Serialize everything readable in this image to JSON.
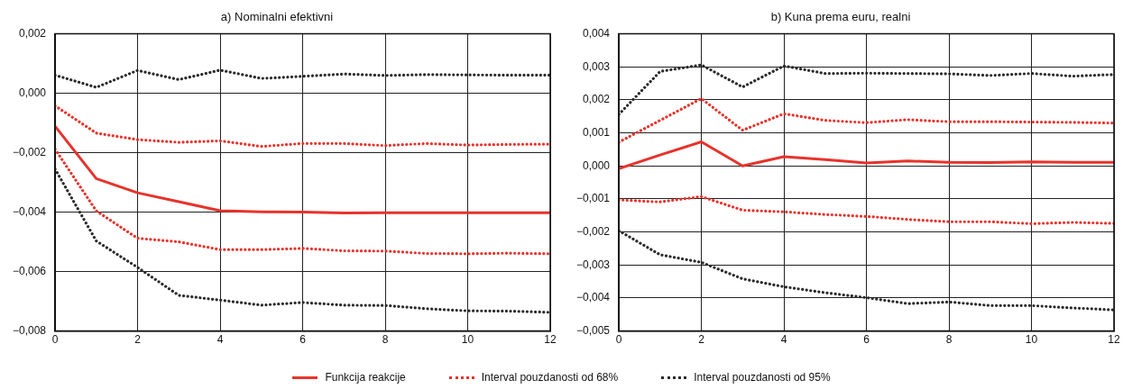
{
  "chart_data": [
    {
      "type": "line",
      "title": "a) Nominalni efektivni",
      "x": [
        0,
        1,
        2,
        3,
        4,
        5,
        6,
        7,
        8,
        9,
        10,
        11,
        12
      ],
      "xlim": [
        0,
        12
      ],
      "xticks": [
        0,
        2,
        4,
        6,
        8,
        10,
        12
      ],
      "ylim": [
        -0.008,
        0.002
      ],
      "yticks": [
        {
          "value": -0.008,
          "label": "−0,008"
        },
        {
          "value": -0.006,
          "label": "−0,006"
        },
        {
          "value": -0.004,
          "label": "−0,004"
        },
        {
          "value": -0.002,
          "label": "−0,002"
        },
        {
          "value": 0,
          "label": "0,000"
        },
        {
          "value": 0.002,
          "label": "0,002"
        }
      ],
      "grid": true,
      "legend": "bottom",
      "marker": "none",
      "series": [
        {
          "name": "Funkcija reakcije",
          "color": "#e8322b",
          "line_style": "solid",
          "values": [
            -0.00111,
            -0.00287,
            -0.00335,
            -0.00365,
            -0.00395,
            -0.00399,
            -0.004,
            -0.00403,
            -0.00402,
            -0.00402,
            -0.00402,
            -0.00402,
            -0.00402
          ]
        },
        {
          "name": "Interval pouzdanosti od 68%",
          "color": "#e8322b",
          "line_style": "dotted",
          "values": [
            -0.00042,
            -0.00134,
            -0.00156,
            -0.00165,
            -0.0016,
            -0.00179,
            -0.00169,
            -0.00169,
            -0.00176,
            -0.00169,
            -0.00174,
            -0.00172,
            -0.00171
          ]
        },
        {
          "color": "#e8322b",
          "line_style": "dotted",
          "values": [
            -0.00188,
            -0.00396,
            -0.00488,
            -0.005,
            -0.00526,
            -0.00526,
            -0.00522,
            -0.0053,
            -0.00531,
            -0.00539,
            -0.0054,
            -0.00538,
            -0.0054
          ]
        },
        {
          "name": "Interval pouzdanosti od 95%",
          "color": "#2b2b2b",
          "line_style": "dotted",
          "values": [
            0.00061,
            0.0002,
            0.00077,
            0.00046,
            0.00078,
            0.0005,
            0.00057,
            0.00065,
            0.0006,
            0.00063,
            0.00062,
            0.00061,
            0.00061
          ]
        },
        {
          "color": "#2b2b2b",
          "line_style": "dotted",
          "values": [
            -0.00255,
            -0.00497,
            -0.00586,
            -0.0068,
            -0.00696,
            -0.00713,
            -0.00704,
            -0.00713,
            -0.00714,
            -0.00725,
            -0.00732,
            -0.00733,
            -0.00737
          ]
        }
      ]
    },
    {
      "type": "line",
      "title": "b) Kuna prema euru, realni",
      "x": [
        0,
        1,
        2,
        3,
        4,
        5,
        6,
        7,
        8,
        9,
        10,
        11,
        12
      ],
      "xlim": [
        0,
        12
      ],
      "xticks": [
        0,
        2,
        4,
        6,
        8,
        10,
        12
      ],
      "ylim": [
        -0.005,
        0.004
      ],
      "yticks": [
        {
          "value": -0.005,
          "label": "−0,005"
        },
        {
          "value": -0.004,
          "label": "−0,004"
        },
        {
          "value": -0.003,
          "label": "−0,003"
        },
        {
          "value": -0.002,
          "label": "−0,002"
        },
        {
          "value": -0.001,
          "label": "−0,001"
        },
        {
          "value": 0,
          "label": "0,000"
        },
        {
          "value": 0.001,
          "label": "0,001"
        },
        {
          "value": 0.002,
          "label": "0,002"
        },
        {
          "value": 0.003,
          "label": "0,003"
        },
        {
          "value": 0.004,
          "label": "0,004"
        }
      ],
      "grid": true,
      "marker": "none",
      "series": [
        {
          "color": "#e8322b",
          "line_style": "solid",
          "values": [
            -8e-05,
            0.00033,
            0.00073,
            0,
            0.00028,
            0.00019,
            9e-05,
            0.00015,
            0.00011,
            0.0001,
            0.00012,
            0.00011,
            0.00011
          ]
        },
        {
          "color": "#e8322b",
          "line_style": "dotted",
          "values": [
            0.00072,
            0.00138,
            0.00204,
            0.00108,
            0.00158,
            0.00138,
            0.00131,
            0.0014,
            0.00134,
            0.00134,
            0.00133,
            0.00132,
            0.0013
          ]
        },
        {
          "color": "#e8322b",
          "line_style": "dotted",
          "values": [
            -0.00103,
            -0.00109,
            -0.00093,
            -0.00134,
            -0.00139,
            -0.00147,
            -0.00153,
            -0.00162,
            -0.00169,
            -0.00169,
            -0.00175,
            -0.00171,
            -0.00174
          ]
        },
        {
          "color": "#2b2b2b",
          "line_style": "dotted",
          "values": [
            0.00156,
            0.00286,
            0.00306,
            0.00239,
            0.00303,
            0.0028,
            0.00281,
            0.0028,
            0.00279,
            0.00274,
            0.0028,
            0.00272,
            0.00277
          ]
        },
        {
          "color": "#2b2b2b",
          "line_style": "dotted",
          "values": [
            -0.00196,
            -0.00269,
            -0.00292,
            -0.00342,
            -0.00366,
            -0.00384,
            -0.00399,
            -0.00417,
            -0.00412,
            -0.00423,
            -0.00423,
            -0.0043,
            -0.00436
          ]
        }
      ]
    }
  ]
}
